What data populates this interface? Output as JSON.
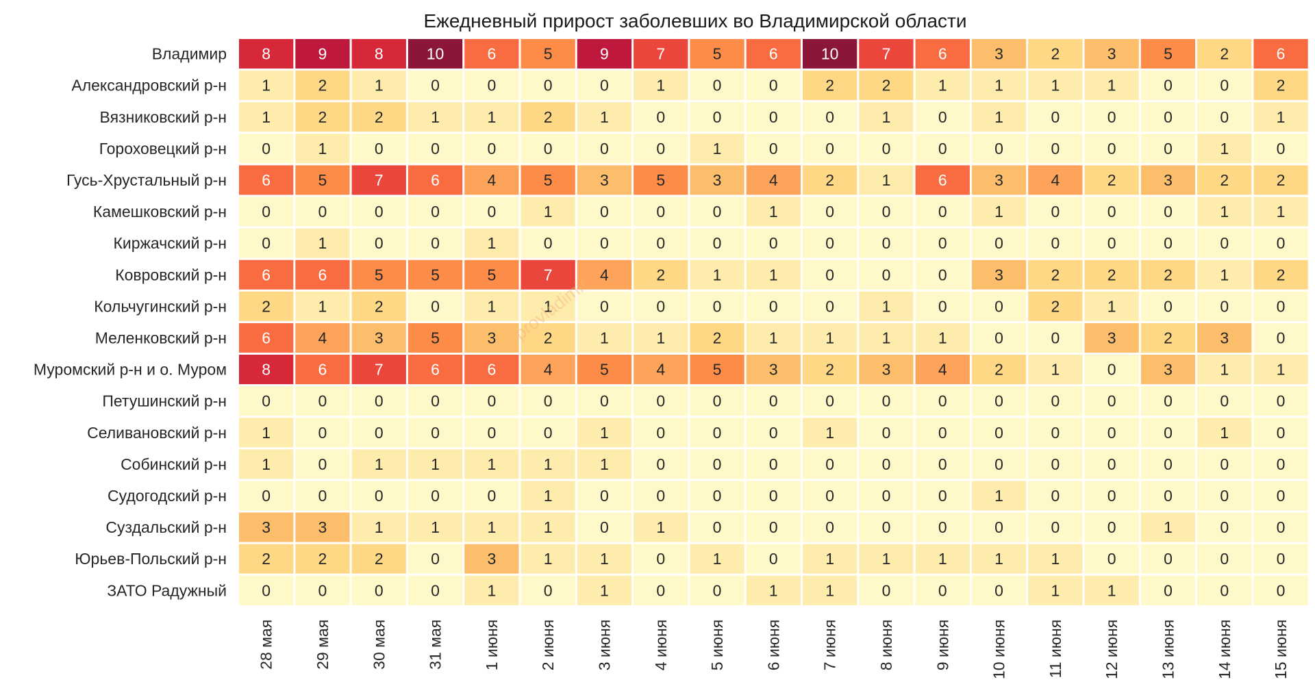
{
  "chart_data": {
    "type": "heatmap",
    "title": "Ежедневный прирост заболевших во Владимирской области",
    "watermark": "provladimir",
    "xlabel": "",
    "ylabel": "",
    "colormap": "YlOrRd",
    "vmin": 0,
    "vmax": 10,
    "columns": [
      "28 мая",
      "29 мая",
      "30 мая",
      "31 мая",
      "1 июня",
      "2 июня",
      "3 июня",
      "4 июня",
      "5 июня",
      "6 июня",
      "7 июня",
      "8 июня",
      "9 июня",
      "10 июня",
      "11 июня",
      "12 июня",
      "13 июня",
      "14 июня",
      "15 июня"
    ],
    "rows": [
      "Владимир",
      "Александровский р-н",
      "Вязниковский р-н",
      "Гороховецкий р-н",
      "Гусь-Хрустальный р-н",
      "Камешковский р-н",
      "Киржачский р-н",
      "Ковровский р-н",
      "Кольчугинский р-н",
      "Меленковский р-н",
      "Муромский р-н и о. Муром",
      "Петушинский р-н",
      "Селивановский р-н",
      "Собинский р-н",
      "Судогодский р-н",
      "Суздальский р-н",
      "Юрьев-Польский р-н",
      "ЗАТО Радужный"
    ],
    "values": [
      [
        8,
        9,
        8,
        10,
        6,
        5,
        9,
        7,
        5,
        6,
        10,
        7,
        6,
        3,
        2,
        3,
        5,
        2,
        6
      ],
      [
        1,
        2,
        1,
        0,
        0,
        0,
        0,
        1,
        0,
        0,
        2,
        2,
        1,
        1,
        1,
        1,
        0,
        0,
        2
      ],
      [
        1,
        2,
        2,
        1,
        1,
        2,
        1,
        0,
        0,
        0,
        0,
        1,
        0,
        1,
        0,
        0,
        0,
        0,
        1
      ],
      [
        0,
        1,
        0,
        0,
        0,
        0,
        0,
        0,
        1,
        0,
        0,
        0,
        0,
        0,
        0,
        0,
        0,
        1,
        0
      ],
      [
        6,
        5,
        7,
        6,
        4,
        5,
        3,
        5,
        3,
        4,
        2,
        1,
        6,
        3,
        4,
        2,
        3,
        2,
        2
      ],
      [
        0,
        0,
        0,
        0,
        0,
        1,
        0,
        0,
        0,
        1,
        0,
        0,
        0,
        1,
        0,
        0,
        0,
        1,
        1
      ],
      [
        0,
        1,
        0,
        0,
        1,
        0,
        0,
        0,
        0,
        0,
        0,
        0,
        0,
        0,
        0,
        0,
        0,
        0,
        0
      ],
      [
        6,
        6,
        5,
        5,
        5,
        7,
        4,
        2,
        1,
        1,
        0,
        0,
        0,
        3,
        2,
        2,
        2,
        1,
        2
      ],
      [
        2,
        1,
        2,
        0,
        1,
        1,
        0,
        0,
        0,
        0,
        0,
        1,
        0,
        0,
        2,
        1,
        0,
        0,
        0
      ],
      [
        6,
        4,
        3,
        5,
        3,
        2,
        1,
        1,
        2,
        1,
        1,
        1,
        1,
        0,
        0,
        3,
        2,
        3,
        0
      ],
      [
        8,
        6,
        7,
        6,
        6,
        4,
        5,
        4,
        5,
        3,
        2,
        3,
        4,
        2,
        1,
        0,
        3,
        1,
        1
      ],
      [
        0,
        0,
        0,
        0,
        0,
        0,
        0,
        0,
        0,
        0,
        0,
        0,
        0,
        0,
        0,
        0,
        0,
        0,
        0
      ],
      [
        1,
        0,
        0,
        0,
        0,
        0,
        1,
        0,
        0,
        0,
        1,
        0,
        0,
        0,
        0,
        0,
        0,
        1,
        0
      ],
      [
        1,
        0,
        1,
        1,
        1,
        1,
        1,
        0,
        0,
        0,
        0,
        0,
        0,
        0,
        0,
        0,
        0,
        0,
        0
      ],
      [
        0,
        0,
        0,
        0,
        0,
        1,
        0,
        0,
        0,
        0,
        0,
        0,
        0,
        1,
        0,
        0,
        0,
        0,
        0
      ],
      [
        3,
        3,
        1,
        1,
        1,
        1,
        0,
        1,
        0,
        0,
        0,
        0,
        0,
        0,
        0,
        0,
        1,
        0,
        0
      ],
      [
        2,
        2,
        2,
        0,
        3,
        1,
        1,
        0,
        1,
        0,
        1,
        1,
        1,
        1,
        1,
        0,
        0,
        0,
        0
      ],
      [
        0,
        0,
        0,
        0,
        1,
        0,
        1,
        0,
        0,
        1,
        1,
        0,
        0,
        0,
        1,
        1,
        0,
        0,
        0
      ]
    ]
  }
}
